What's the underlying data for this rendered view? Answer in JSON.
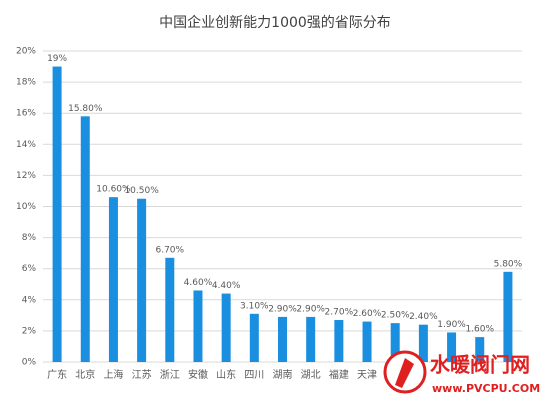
{
  "chart_data": {
    "type": "bar",
    "title": "中国企业创新能力1000强的省际分布",
    "categories": [
      "广东",
      "北京",
      "上海",
      "江苏",
      "浙江",
      "安徽",
      "山东",
      "四川",
      "湖南",
      "湖北",
      "福建",
      "天津",
      null,
      null,
      null,
      null,
      null
    ],
    "values": [
      19,
      15.8,
      10.6,
      10.5,
      6.7,
      4.6,
      4.4,
      3.1,
      2.9,
      2.9,
      2.7,
      2.6,
      2.5,
      2.4,
      1.9,
      1.6,
      5.8
    ],
    "value_labels": [
      "19%",
      "15.80%",
      "10.60%",
      "10.50%",
      "6.70%",
      "4.60%",
      "4.40%",
      "3.10%",
      "2.90%",
      "2.90%",
      "2.70%",
      "2.60%",
      "2.50%",
      "2.40%",
      "1.90%",
      "1.60%",
      "5.80%"
    ],
    "color": "#1a8fdf",
    "ylim": [
      0,
      20
    ],
    "yticks": [
      {
        "value": 0,
        "label": "0%"
      },
      {
        "value": 2,
        "label": "2%"
      },
      {
        "value": 4,
        "label": "4%"
      },
      {
        "value": 6,
        "label": "6%"
      },
      {
        "value": 8,
        "label": "8%"
      },
      {
        "value": 10,
        "label": "10%"
      },
      {
        "value": 12,
        "label": "12%"
      },
      {
        "value": 14,
        "label": "14%"
      },
      {
        "value": 16,
        "label": "16%"
      },
      {
        "value": 18,
        "label": "18%"
      },
      {
        "value": 20,
        "label": "20%"
      }
    ],
    "grid": true,
    "watermark": "水暖阀门网",
    "watermark_url": "www.PVCPU.COM"
  }
}
